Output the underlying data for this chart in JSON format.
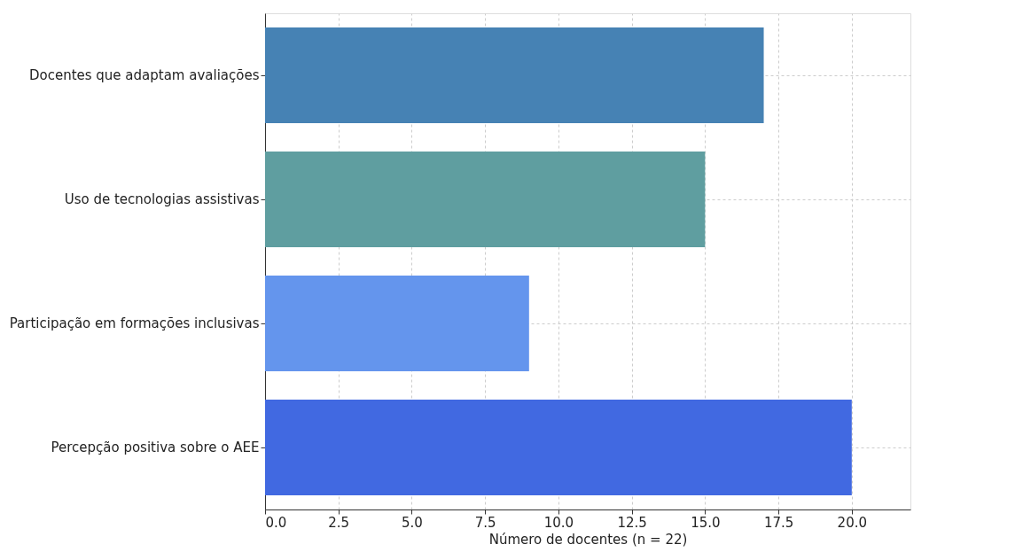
{
  "chart_data": {
    "type": "bar",
    "orientation": "horizontal",
    "xlabel": "Número de docentes (n = 22)",
    "categories": [
      "Docentes que adaptam avaliações",
      "Uso de tecnologias assistivas",
      "Participação em formações inclusivas",
      "Percepção positiva sobre o AEE"
    ],
    "values": [
      17,
      15,
      9,
      20
    ],
    "colors": [
      "#4682b4",
      "#5f9ea0",
      "#6495ed",
      "#4169e1"
    ],
    "xlim": [
      0,
      22
    ],
    "xticks": [
      {
        "value": 0,
        "label": "0.0"
      },
      {
        "value": 2.5,
        "label": "2.5"
      },
      {
        "value": 5,
        "label": "5.0"
      },
      {
        "value": 7.5,
        "label": "7.5"
      },
      {
        "value": 10,
        "label": "10.0"
      },
      {
        "value": 12.5,
        "label": "12.5"
      },
      {
        "value": 15,
        "label": "15.0"
      },
      {
        "value": 17.5,
        "label": "17.5"
      },
      {
        "value": 20,
        "label": "20.0"
      }
    ],
    "grid": true
  }
}
